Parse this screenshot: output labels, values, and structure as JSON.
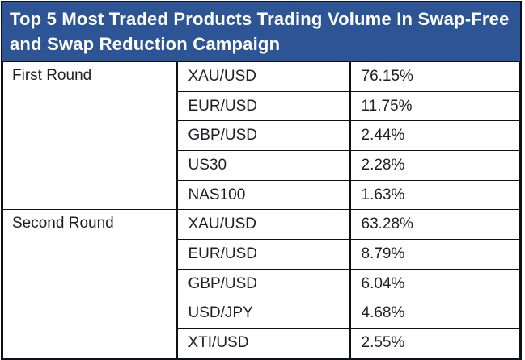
{
  "colors": {
    "header_bg": "#2D5596",
    "header_text": "#FFFFFF",
    "body_text": "#1E1E28",
    "border": "#10101C"
  },
  "chart_data": {
    "type": "table",
    "title": "Top 5 Most Traded Products Trading Volume In Swap-Free and Swap Reduction Campaign",
    "groups": [
      {
        "label": "First Round",
        "items": [
          {
            "product": "XAU/USD",
            "share": "76.15%"
          },
          {
            "product": "EUR/USD",
            "share": "11.75%"
          },
          {
            "product": "GBP/USD",
            "share": "2.44%"
          },
          {
            "product": "US30",
            "share": "2.28%"
          },
          {
            "product": "NAS100",
            "share": "1.63%"
          }
        ]
      },
      {
        "label": "Second Round",
        "items": [
          {
            "product": "XAU/USD",
            "share": "63.28%"
          },
          {
            "product": "EUR/USD",
            "share": "8.79%"
          },
          {
            "product": "GBP/USD",
            "share": "6.04%"
          },
          {
            "product": "USD/JPY",
            "share": "4.68%"
          },
          {
            "product": "XTI/USD",
            "share": "2.55%"
          }
        ]
      }
    ]
  }
}
